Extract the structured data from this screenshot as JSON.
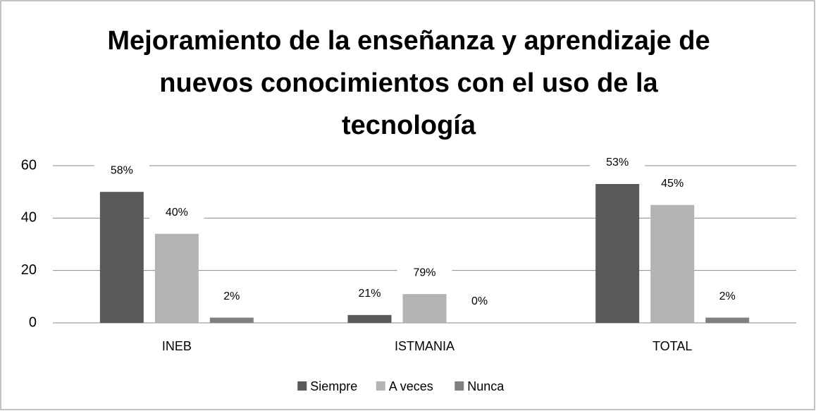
{
  "chart_data": {
    "type": "bar",
    "title": "Mejoramiento de la enseñanza y aprendizaje de nuevos conocimientos con el uso de la tecnología",
    "categories": [
      "INEB",
      "ISTMANIA",
      "TOTAL"
    ],
    "series": [
      {
        "name": "Siempre",
        "color": "#595959",
        "values": [
          50,
          3,
          53
        ],
        "labels": [
          "58%",
          "21%",
          "53%"
        ]
      },
      {
        "name": "A veces",
        "color": "#b3b3b3",
        "values": [
          34,
          11,
          45
        ],
        "labels": [
          "40%",
          "79%",
          "45%"
        ]
      },
      {
        "name": "Nunca",
        "color": "#808080",
        "values": [
          2,
          0,
          2
        ],
        "labels": [
          "2%",
          "0%",
          "2%"
        ]
      }
    ],
    "ylim": [
      0,
      60
    ],
    "yticks": [
      0,
      20,
      40,
      60
    ],
    "grid": true,
    "legend": "bottom"
  }
}
